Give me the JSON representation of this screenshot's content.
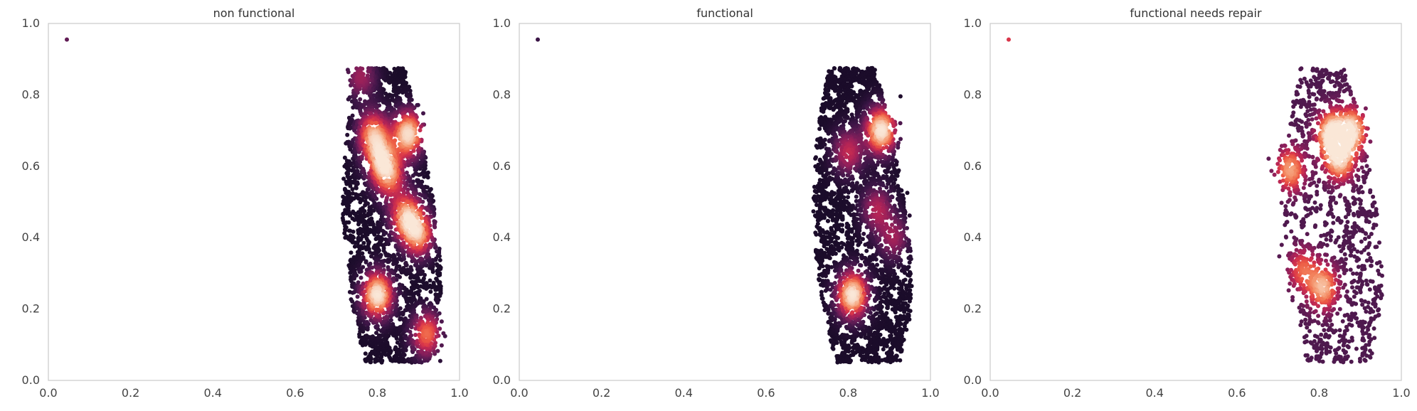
{
  "chart_data": [
    {
      "type": "scatter",
      "title": "non functional",
      "xlabel": "",
      "ylabel": "",
      "xlim": [
        0.0,
        1.0
      ],
      "ylim": [
        0.0,
        1.0
      ],
      "xticks": [
        "0.0",
        "0.2",
        "0.4",
        "0.6",
        "0.8",
        "1.0"
      ],
      "yticks": [
        "0.0",
        "0.2",
        "0.4",
        "0.6",
        "0.8",
        "1.0"
      ],
      "grid": false,
      "legend": "none",
      "color_encoding": "point density (rocket colormap, dark = low, light = high)",
      "outlier_point": {
        "x": 0.045,
        "y": 0.955
      },
      "hotspots": [
        {
          "x": 0.79,
          "y": 0.69,
          "density": 0.75
        },
        {
          "x": 0.81,
          "y": 0.62,
          "density": 0.7
        },
        {
          "x": 0.83,
          "y": 0.57,
          "density": 0.6
        },
        {
          "x": 0.875,
          "y": 0.69,
          "density": 0.95
        },
        {
          "x": 0.87,
          "y": 0.46,
          "density": 0.8
        },
        {
          "x": 0.9,
          "y": 0.41,
          "density": 0.75
        },
        {
          "x": 0.8,
          "y": 0.24,
          "density": 1.0
        },
        {
          "x": 0.92,
          "y": 0.13,
          "density": 0.65
        },
        {
          "x": 0.76,
          "y": 0.85,
          "density": 0.35
        }
      ]
    },
    {
      "type": "scatter",
      "title": "functional",
      "xlabel": "",
      "ylabel": "",
      "xlim": [
        0.0,
        1.0
      ],
      "ylim": [
        0.0,
        1.0
      ],
      "xticks": [
        "0.0",
        "0.2",
        "0.4",
        "0.6",
        "0.8",
        "1.0"
      ],
      "yticks": [
        "0.0",
        "0.2",
        "0.4",
        "0.6",
        "0.8",
        "1.0"
      ],
      "grid": false,
      "legend": "none",
      "color_encoding": "point density (rocket colormap, dark = low, light = high)",
      "outlier_point": {
        "x": 0.045,
        "y": 0.955
      },
      "hotspots": [
        {
          "x": 0.88,
          "y": 0.7,
          "density": 1.0
        },
        {
          "x": 0.81,
          "y": 0.24,
          "density": 1.0
        },
        {
          "x": 0.8,
          "y": 0.64,
          "density": 0.45
        },
        {
          "x": 0.87,
          "y": 0.48,
          "density": 0.4
        },
        {
          "x": 0.91,
          "y": 0.4,
          "density": 0.35
        }
      ]
    },
    {
      "type": "scatter",
      "title": "functional needs repair",
      "xlabel": "",
      "ylabel": "",
      "xlim": [
        0.0,
        1.0
      ],
      "ylim": [
        0.0,
        1.0
      ],
      "xticks": [
        "0.0",
        "0.2",
        "0.4",
        "0.6",
        "0.8",
        "1.0"
      ],
      "yticks": [
        "0.0",
        "0.2",
        "0.4",
        "0.6",
        "0.8",
        "1.0"
      ],
      "grid": false,
      "legend": "none",
      "color_encoding": "point density (rocket colormap, dark = low, light = high)",
      "outlier_point": {
        "x": 0.045,
        "y": 0.955
      },
      "hotspots": [
        {
          "x": 0.83,
          "y": 0.69,
          "density": 1.0
        },
        {
          "x": 0.88,
          "y": 0.7,
          "density": 0.9
        },
        {
          "x": 0.85,
          "y": 0.62,
          "density": 0.85
        },
        {
          "x": 0.73,
          "y": 0.59,
          "density": 0.75
        },
        {
          "x": 0.81,
          "y": 0.26,
          "density": 0.8
        },
        {
          "x": 0.76,
          "y": 0.31,
          "density": 0.55
        }
      ]
    }
  ],
  "colors": {
    "axes_edge": "#cccccc",
    "text": "#444444",
    "background": "#ffffff",
    "colormap": [
      "#1b0c2a",
      "#3b1546",
      "#611c55",
      "#8c1f5b",
      "#b32456",
      "#d9364a",
      "#ec5a44",
      "#f3855e",
      "#f6ae8a",
      "#f8d5c0",
      "#faebdd"
    ]
  }
}
